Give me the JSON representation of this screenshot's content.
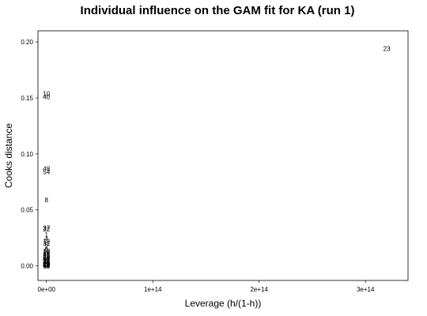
{
  "chart_data": {
    "type": "scatter",
    "title": "Individual influence on the GAM fit for KA (run 1)",
    "xlabel": "Leverage (h/(1-h))",
    "ylabel": "Cooks distance",
    "xlim": [
      -8000000000000.0,
      340000000000000.0
    ],
    "ylim": [
      -0.013,
      0.21
    ],
    "x_ticks": [
      0,
      100000000000000.0,
      200000000000000.0,
      300000000000000.0
    ],
    "x_tick_labels": [
      "0e+00",
      "1e+14",
      "2e+14",
      "3e+14"
    ],
    "y_ticks": [
      0,
      0.05,
      0.1,
      0.15,
      0.2
    ],
    "y_tick_labels": [
      "0.00",
      "0.05",
      "0.10",
      "0.15",
      "0.20"
    ],
    "grid": false,
    "marker": "observation number",
    "points": [
      {
        "label": "23",
        "x": 320000000000000.0,
        "y": 0.194
      },
      {
        "label": "10",
        "x": 0,
        "y": 0.154
      },
      {
        "label": "40",
        "x": 0,
        "y": 0.151
      },
      {
        "label": "48",
        "x": 0,
        "y": 0.087
      },
      {
        "label": "54",
        "x": 0,
        "y": 0.084
      },
      {
        "label": "8",
        "x": 0,
        "y": 0.059
      },
      {
        "label": "37",
        "x": 0,
        "y": 0.034
      },
      {
        "label": "32",
        "x": 0,
        "y": 0.033
      },
      {
        "label": "1",
        "x": 0,
        "y": 0.028
      },
      {
        "label": "4",
        "x": 0,
        "y": 0.024
      },
      {
        "label": "13",
        "x": 0,
        "y": 0.022
      },
      {
        "label": "31",
        "x": 0,
        "y": 0.02
      },
      {
        "label": "5",
        "x": 0,
        "y": 0.019
      },
      {
        "label": "6",
        "x": 0,
        "y": 0.015
      },
      {
        "label": "2",
        "x": 0,
        "y": 0.014
      },
      {
        "label": "12",
        "x": 0,
        "y": 0.013
      },
      {
        "label": "19",
        "x": 0,
        "y": 0.012
      },
      {
        "label": "17",
        "x": 0,
        "y": 0.011
      },
      {
        "label": "25",
        "x": 0,
        "y": 0.01
      },
      {
        "label": "33",
        "x": 0,
        "y": 0.009
      },
      {
        "label": "28",
        "x": 0,
        "y": 0.008
      },
      {
        "label": "36",
        "x": 0,
        "y": 0.007
      },
      {
        "label": "41",
        "x": 0,
        "y": 0.006
      },
      {
        "label": "14",
        "x": 0,
        "y": 0.0055
      },
      {
        "label": "22",
        "x": 0,
        "y": 0.005
      },
      {
        "label": "3",
        "x": 0,
        "y": 0.0045
      },
      {
        "label": "9",
        "x": 0,
        "y": 0.004
      },
      {
        "label": "26",
        "x": 0,
        "y": 0.0035
      },
      {
        "label": "44",
        "x": 0,
        "y": 0.003
      },
      {
        "label": "15",
        "x": 0,
        "y": 0.0025
      },
      {
        "label": "20",
        "x": 0,
        "y": 0.002
      },
      {
        "label": "29",
        "x": 0,
        "y": 0.0015
      },
      {
        "label": "38",
        "x": 0,
        "y": 0.001
      },
      {
        "label": "47",
        "x": 0,
        "y": 0.0008
      },
      {
        "label": "50",
        "x": 0,
        "y": 0.0006
      },
      {
        "label": "7",
        "x": 0,
        "y": 0.0004
      },
      {
        "label": "11",
        "x": 0,
        "y": 0.0002
      },
      {
        "label": "16",
        "x": 0,
        "y": 0.0001
      }
    ]
  }
}
